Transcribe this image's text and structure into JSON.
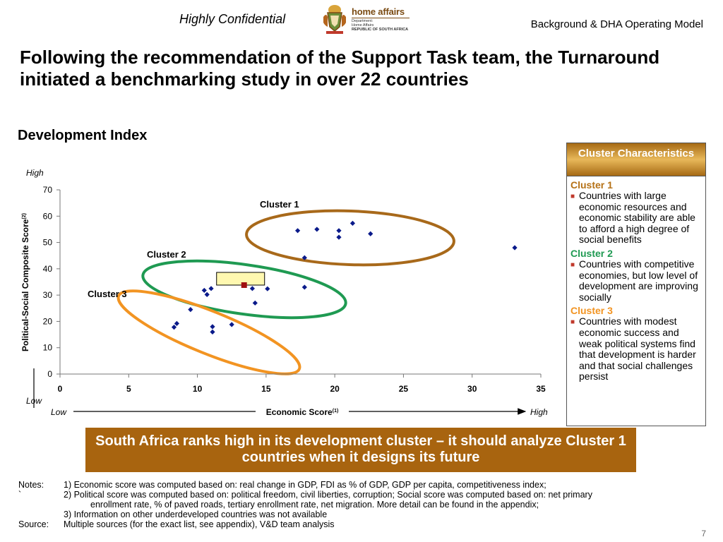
{
  "header": {
    "confidential": "Highly Confidential",
    "logo_main": "home affairs",
    "logo_line1": "Department:",
    "logo_line2": "Home Affairs",
    "logo_line3": "REPUBLIC OF SOUTH AFRICA",
    "section_title": "Background & DHA Operating Model"
  },
  "title": "Following the recommendation of the Support Task team, the Turnaround  initiated a benchmarking study in over 22 countries",
  "section": "Development Index",
  "chart_data": {
    "type": "scatter",
    "xlabel": "Economic Score",
    "xlabel_sup": "(1)",
    "ylabel": "Political-Social Composite Score",
    "ylabel_sup": "(2)",
    "xlim": [
      0,
      35
    ],
    "ylim": [
      0,
      70
    ],
    "xticks": [
      0,
      5,
      10,
      15,
      20,
      25,
      30,
      35
    ],
    "yticks": [
      0,
      10,
      20,
      30,
      40,
      50,
      60,
      70
    ],
    "x_low": "Low",
    "x_high": "High",
    "y_low": "Low",
    "y_high": "High",
    "points": [
      {
        "x": 17.3,
        "y": 54.5
      },
      {
        "x": 18.7,
        "y": 55
      },
      {
        "x": 20.3,
        "y": 54.5
      },
      {
        "x": 20.3,
        "y": 52
      },
      {
        "x": 21.3,
        "y": 57.3
      },
      {
        "x": 22.6,
        "y": 53.3
      },
      {
        "x": 17.8,
        "y": 44.2
      },
      {
        "x": 17.8,
        "y": 33
      },
      {
        "x": 33.1,
        "y": 48
      },
      {
        "x": 10.5,
        "y": 31.8
      },
      {
        "x": 10.7,
        "y": 30.2
      },
      {
        "x": 11.0,
        "y": 32.5
      },
      {
        "x": 14.0,
        "y": 32.5
      },
      {
        "x": 15.1,
        "y": 32.4
      },
      {
        "x": 14.2,
        "y": 27
      },
      {
        "x": 9.5,
        "y": 24.5
      },
      {
        "x": 8.5,
        "y": 19.2
      },
      {
        "x": 8.3,
        "y": 17.8
      },
      {
        "x": 11.1,
        "y": 18
      },
      {
        "x": 11.1,
        "y": 16
      },
      {
        "x": 12.5,
        "y": 18.8
      }
    ],
    "highlight": {
      "x": 13.4,
      "y": 33.8,
      "label": ""
    },
    "clusters": [
      {
        "name": "Cluster 1",
        "color": "#a8691a"
      },
      {
        "name": "Cluster 2",
        "color": "#1f9a52"
      },
      {
        "name": "Cluster 3",
        "color": "#f29422"
      }
    ]
  },
  "panel": {
    "title": "Cluster Characteristics",
    "clusters": [
      {
        "name": "Cluster 1",
        "color": "#b57116",
        "text": "Countries with large economic resources and economic stability are able to afford a high degree of social benefits"
      },
      {
        "name": "Cluster 2",
        "color": "#1f9a52",
        "text": "Countries with competitive economies, but low level of development are improving socially"
      },
      {
        "name": "Cluster 3",
        "color": "#f29422",
        "text": "Countries with modest economic success and weak political systems find that development is harder and that social challenges persist"
      }
    ]
  },
  "callout": "South Africa ranks high in its development cluster – it should analyze Cluster 1 countries when it designs its future",
  "notes": {
    "notes_label": "Notes:",
    "tick_mark": "`",
    "n1": "1) Economic score was computed based on: real change in GDP, FDI as % of GDP, GDP per capita, competitiveness index;",
    "n2a": "2) Political score was computed based on: political freedom, civil liberties, corruption; Social score was computed based on: net primary",
    "n2b": "enrollment rate, % of paved roads, tertiary enrollment rate, net migration. More detail can be found in the appendix;",
    "n3": "3) Information on other underdeveloped countries was not available",
    "source_label": "Source:",
    "source": "Multiple sources (for the exact list, see appendix), V&D team analysis"
  },
  "page_number": "7"
}
